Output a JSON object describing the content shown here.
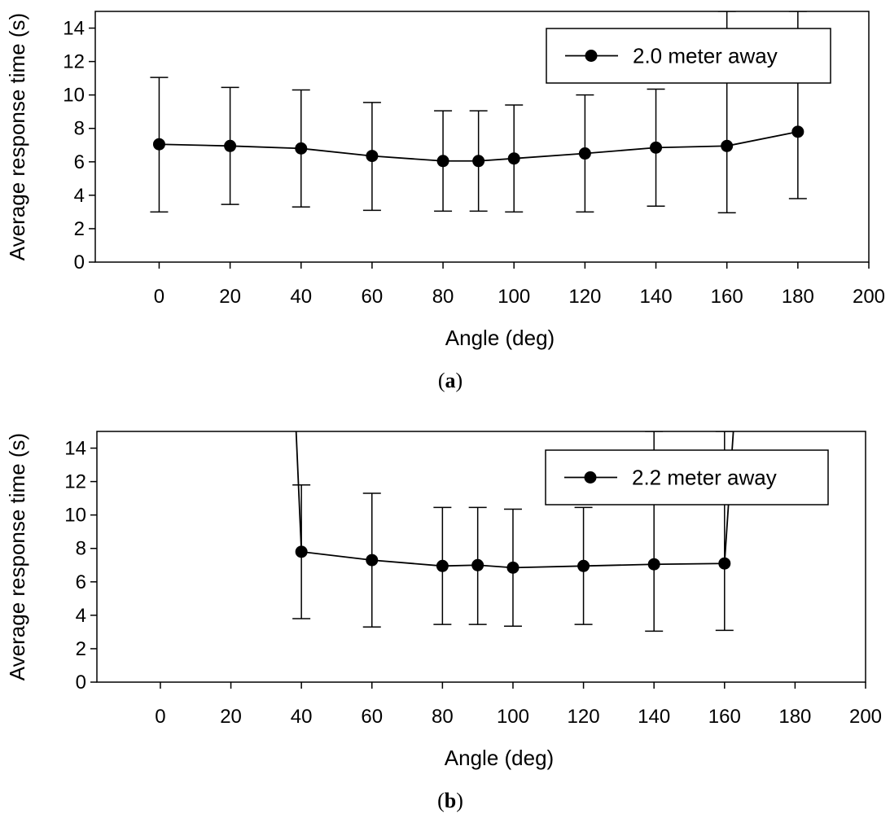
{
  "chart_data": [
    {
      "type": "line",
      "panel_label": {
        "open": "(",
        "letter": "a",
        "close": ")"
      },
      "xlabel": "Angle (deg)",
      "ylabel": "Average response time (s)",
      "xlim": [
        -18,
        200
      ],
      "ylim": [
        0,
        15
      ],
      "x_ticks": [
        0,
        20,
        40,
        60,
        80,
        100,
        120,
        140,
        160,
        180,
        200
      ],
      "y_ticks": [
        0,
        2,
        4,
        6,
        8,
        10,
        12,
        14
      ],
      "legend_position": "top-right",
      "series": [
        {
          "name": "2.0 meter away",
          "x": [
            0,
            20,
            40,
            60,
            80,
            90,
            100,
            120,
            140,
            160,
            180
          ],
          "y": [
            7.05,
            6.95,
            6.8,
            6.35,
            6.05,
            6.05,
            6.2,
            6.5,
            6.85,
            6.95,
            7.8
          ],
          "err_low": [
            3.0,
            3.45,
            3.3,
            3.1,
            3.05,
            3.05,
            3.0,
            3.0,
            3.35,
            2.95,
            3.8
          ],
          "err_high": [
            11.05,
            10.45,
            10.3,
            9.55,
            9.05,
            9.05,
            9.4,
            10.0,
            10.35,
            15.0,
            15.0
          ]
        }
      ]
    },
    {
      "type": "line",
      "panel_label": {
        "open": "(",
        "letter": "b",
        "close": ")"
      },
      "xlabel": "Angle (deg)",
      "ylabel": "Average response time (s)",
      "xlim": [
        -18,
        200
      ],
      "ylim": [
        0,
        15
      ],
      "x_ticks": [
        0,
        20,
        40,
        60,
        80,
        100,
        120,
        140,
        160,
        180,
        200
      ],
      "y_ticks": [
        0,
        2,
        4,
        6,
        8,
        10,
        12,
        14
      ],
      "legend_position": "top-right",
      "series": [
        {
          "name": "2.2 meter away",
          "x": [
            40,
            60,
            80,
            90,
            100,
            120,
            140,
            160
          ],
          "y": [
            7.8,
            7.3,
            6.95,
            7.0,
            6.85,
            6.95,
            7.05,
            7.1
          ],
          "err_low": [
            3.8,
            3.3,
            3.45,
            3.45,
            3.35,
            3.45,
            3.05,
            3.1
          ],
          "err_high": [
            11.8,
            11.3,
            10.45,
            10.45,
            10.35,
            10.45,
            15.0,
            15.0
          ],
          "line_start": [
            38.5,
            15.0
          ],
          "line_end": [
            162.5,
            15.0
          ]
        }
      ]
    }
  ]
}
